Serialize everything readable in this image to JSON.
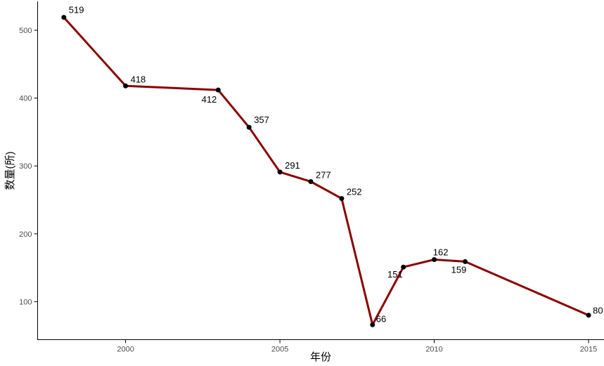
{
  "chart_data": {
    "type": "line",
    "title": "",
    "xlabel": "年份",
    "ylabel": "数量(所)",
    "series": [
      {
        "name": "数量(所)",
        "x": [
          1998,
          2000,
          2003,
          2004,
          2005,
          2006,
          2007,
          2008,
          2009,
          2010,
          2011,
          2015
        ],
        "values": [
          519,
          418,
          412,
          357,
          291,
          277,
          252,
          66,
          151,
          162,
          159,
          80
        ],
        "point_labels": [
          "519",
          "418",
          "412",
          "357",
          "291",
          "277",
          "252",
          "66",
          "151",
          "162",
          "159",
          "80"
        ]
      }
    ],
    "x_tick_values": [
      2000,
      2005,
      2010,
      2015
    ],
    "x_tick_labels": [
      "2000",
      "2005",
      "2010",
      "2015"
    ],
    "y_tick_values": [
      100,
      200,
      300,
      400,
      500
    ],
    "y_tick_labels": [
      "100",
      "200",
      "300",
      "400",
      "500"
    ],
    "xlim": [
      1997.15,
      2015.5
    ],
    "ylim": [
      44,
      542
    ],
    "grid": false,
    "legend_position": "none",
    "colors": {
      "line": "#8B0000",
      "point": "#000000",
      "axis_line": "#000000",
      "tick_text": "#4d4d4d",
      "point_label_text": "#000000",
      "axis_title_text": "#000000",
      "background": "#ffffff"
    }
  }
}
